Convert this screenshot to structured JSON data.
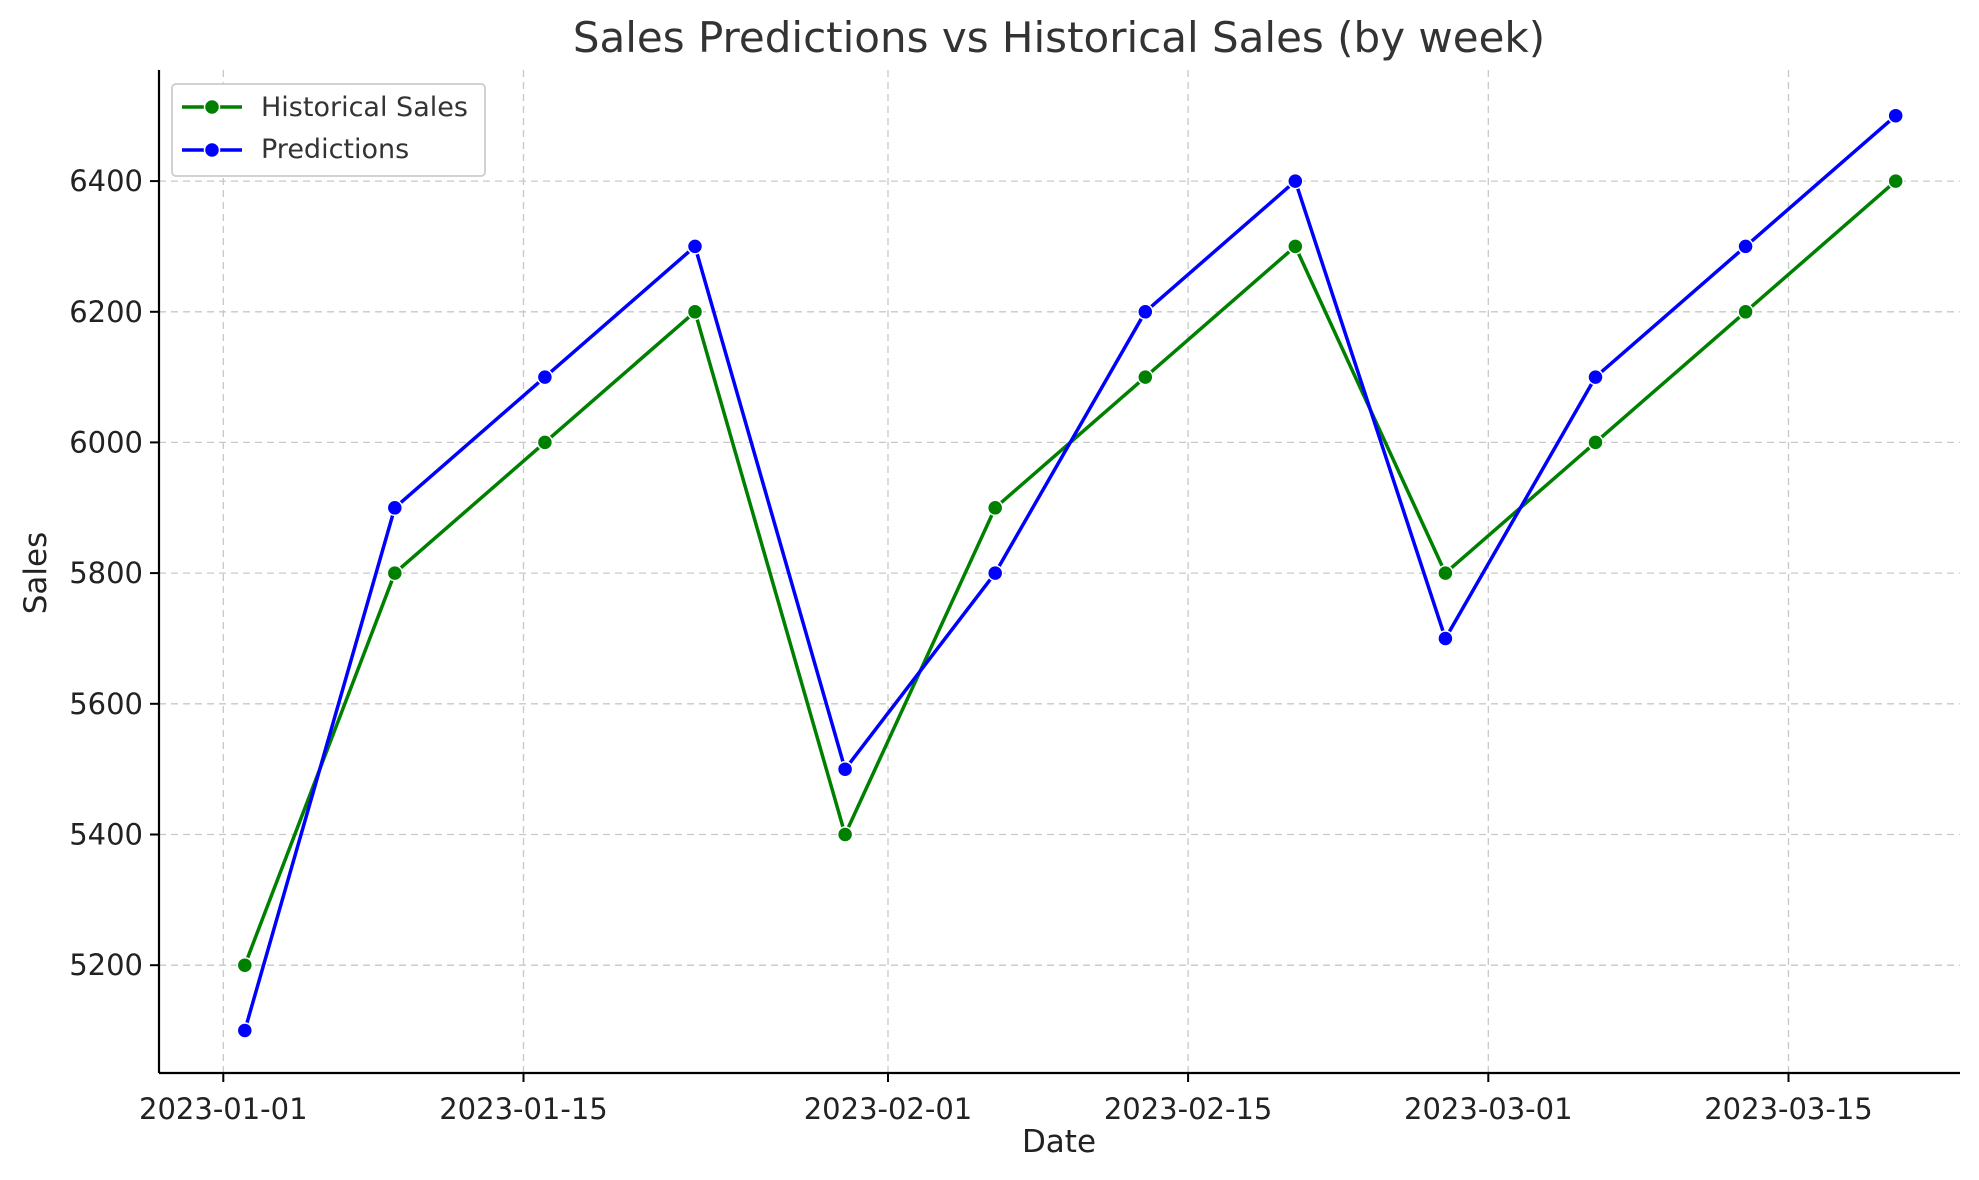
{
  "chart_data": {
    "type": "line",
    "title": "Sales Predictions vs Historical Sales (by week)",
    "xlabel": "Date",
    "ylabel": "Sales",
    "x": [
      "2023-01-02",
      "2023-01-09",
      "2023-01-16",
      "2023-01-23",
      "2023-01-30",
      "2023-02-06",
      "2023-02-13",
      "2023-02-20",
      "2023-02-27",
      "2023-03-06",
      "2023-03-13",
      "2023-03-20"
    ],
    "xlim": [
      "2022-12-29",
      "2023-03-23"
    ],
    "xticks": [
      "2023-01-01",
      "2023-01-15",
      "2023-02-01",
      "2023-02-15",
      "2023-03-01",
      "2023-03-15"
    ],
    "ylim": [
      5035,
      6570
    ],
    "yticks": [
      5200,
      5400,
      5600,
      5800,
      6000,
      6200,
      6400
    ],
    "grid": true,
    "legend_position": "top-left",
    "series": [
      {
        "name": "Historical Sales",
        "color": "#008000",
        "marker": "circle",
        "values": [
          5200,
          5800,
          6000,
          6200,
          5400,
          5900,
          6100,
          6300,
          5800,
          6000,
          6200,
          6400
        ]
      },
      {
        "name": "Predictions",
        "color": "#0000ff",
        "marker": "circle",
        "values": [
          5100,
          5900,
          6100,
          6300,
          5500,
          5800,
          6200,
          6400,
          5700,
          6100,
          6300,
          6500
        ]
      }
    ]
  }
}
